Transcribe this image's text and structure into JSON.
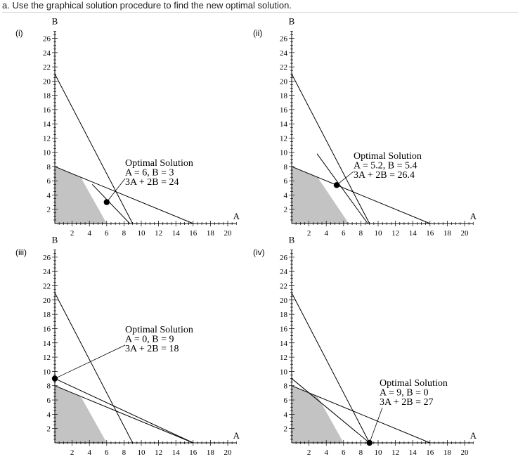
{
  "question": "a. Use the graphical solution procedure to find the new optimal solution.",
  "chart_data": [
    {
      "type": "line",
      "label": "(i)",
      "xlabel": "A",
      "ylabel": "B",
      "xlim": [
        0,
        21
      ],
      "ylim": [
        0,
        27
      ],
      "x_ticks": [
        "2",
        "4",
        "6",
        "8",
        "10",
        "12",
        "14",
        "16",
        "18",
        "20"
      ],
      "y_ticks": [
        "2",
        "4",
        "6",
        "8",
        "10",
        "12",
        "14",
        "16",
        "18",
        "20",
        "22",
        "24",
        "26"
      ],
      "lines": [
        {
          "name": "constraint-steep",
          "x": [
            0,
            9
          ],
          "y": [
            21,
            0
          ]
        },
        {
          "name": "constraint-shallow",
          "x": [
            0,
            16
          ],
          "y": [
            8,
            0
          ]
        },
        {
          "name": "objective",
          "x": [
            4.33,
            8.67
          ],
          "y": [
            5.5,
            0
          ]
        }
      ],
      "feasible_region": {
        "x": [
          0,
          0,
          3,
          6
        ],
        "y": [
          0,
          8,
          6.5,
          0
        ]
      },
      "optimal_point": {
        "x": 6,
        "y": 3
      },
      "annotation": {
        "title": "Optimal Solution",
        "line1": "A = 6, B = 3",
        "line2": "3A + 2B = 24"
      }
    },
    {
      "type": "line",
      "label": "(ii)",
      "xlabel": "A",
      "ylabel": "B",
      "xlim": [
        0,
        21
      ],
      "ylim": [
        0,
        27
      ],
      "x_ticks": [
        "2",
        "4",
        "6",
        "8",
        "10",
        "12",
        "14",
        "16",
        "18",
        "20"
      ],
      "y_ticks": [
        "2",
        "4",
        "6",
        "8",
        "10",
        "12",
        "14",
        "16",
        "18",
        "20",
        "22",
        "24",
        "26"
      ],
      "lines": [
        {
          "name": "constraint-steep",
          "x": [
            0,
            9
          ],
          "y": [
            21,
            0
          ]
        },
        {
          "name": "constraint-shallow",
          "x": [
            0,
            16
          ],
          "y": [
            8,
            0
          ]
        },
        {
          "name": "objective",
          "x": [
            2.93,
            8.8
          ],
          "y": [
            9.8,
            0
          ]
        }
      ],
      "feasible_region": {
        "x": [
          0,
          0,
          3,
          6.6
        ],
        "y": [
          0,
          8,
          6.5,
          0
        ]
      },
      "optimal_point": {
        "x": 5.2,
        "y": 5.4
      },
      "annotation": {
        "title": "Optimal Solution",
        "line1": "A = 5.2, B = 5.4",
        "line2": "3A + 2B = 26.4"
      }
    },
    {
      "type": "line",
      "label": "(iii)",
      "xlabel": "A",
      "ylabel": "B",
      "xlim": [
        0,
        21
      ],
      "ylim": [
        0,
        27
      ],
      "x_ticks": [
        "2",
        "4",
        "6",
        "8",
        "10",
        "12",
        "14",
        "16",
        "18",
        "20"
      ],
      "y_ticks": [
        "2",
        "4",
        "6",
        "8",
        "10",
        "12",
        "14",
        "16",
        "18",
        "20",
        "22",
        "24",
        "26"
      ],
      "lines": [
        {
          "name": "constraint-steep",
          "x": [
            0,
            9
          ],
          "y": [
            21,
            0
          ]
        },
        {
          "name": "constraint-shallow",
          "x": [
            0,
            16
          ],
          "y": [
            8,
            0
          ]
        },
        {
          "name": "third-line",
          "x": [
            0,
            16
          ],
          "y": [
            9,
            0
          ]
        }
      ],
      "feasible_region": {
        "x": [
          0,
          0,
          3,
          6
        ],
        "y": [
          0,
          8,
          6.5,
          0
        ]
      },
      "optimal_point": {
        "x": 0,
        "y": 9
      },
      "annotation": {
        "title": "Optimal Solution",
        "line1": "A = 0, B = 9",
        "line2": "3A + 2B = 18"
      }
    },
    {
      "type": "line",
      "label": "(iv)",
      "xlabel": "A",
      "ylabel": "B",
      "xlim": [
        0,
        21
      ],
      "ylim": [
        0,
        27
      ],
      "x_ticks": [
        "2",
        "4",
        "6",
        "8",
        "10",
        "12",
        "14",
        "16",
        "18",
        "20"
      ],
      "y_ticks": [
        "2",
        "4",
        "6",
        "8",
        "10",
        "12",
        "14",
        "16",
        "18",
        "20",
        "22",
        "24",
        "26"
      ],
      "lines": [
        {
          "name": "constraint-steep",
          "x": [
            0,
            9
          ],
          "y": [
            21,
            0
          ]
        },
        {
          "name": "constraint-shallow",
          "x": [
            0,
            16
          ],
          "y": [
            8,
            0
          ]
        },
        {
          "name": "third-line",
          "x": [
            0,
            9
          ],
          "y": [
            9,
            0
          ]
        }
      ],
      "feasible_region": {
        "x": [
          0,
          0,
          3,
          6
        ],
        "y": [
          0,
          8,
          6.5,
          0
        ]
      },
      "optimal_point": {
        "x": 9,
        "y": 0
      },
      "annotation": {
        "title": "Optimal Solution",
        "line1": "A = 9, B = 0",
        "line2": "3A + 2B = 27"
      }
    }
  ]
}
